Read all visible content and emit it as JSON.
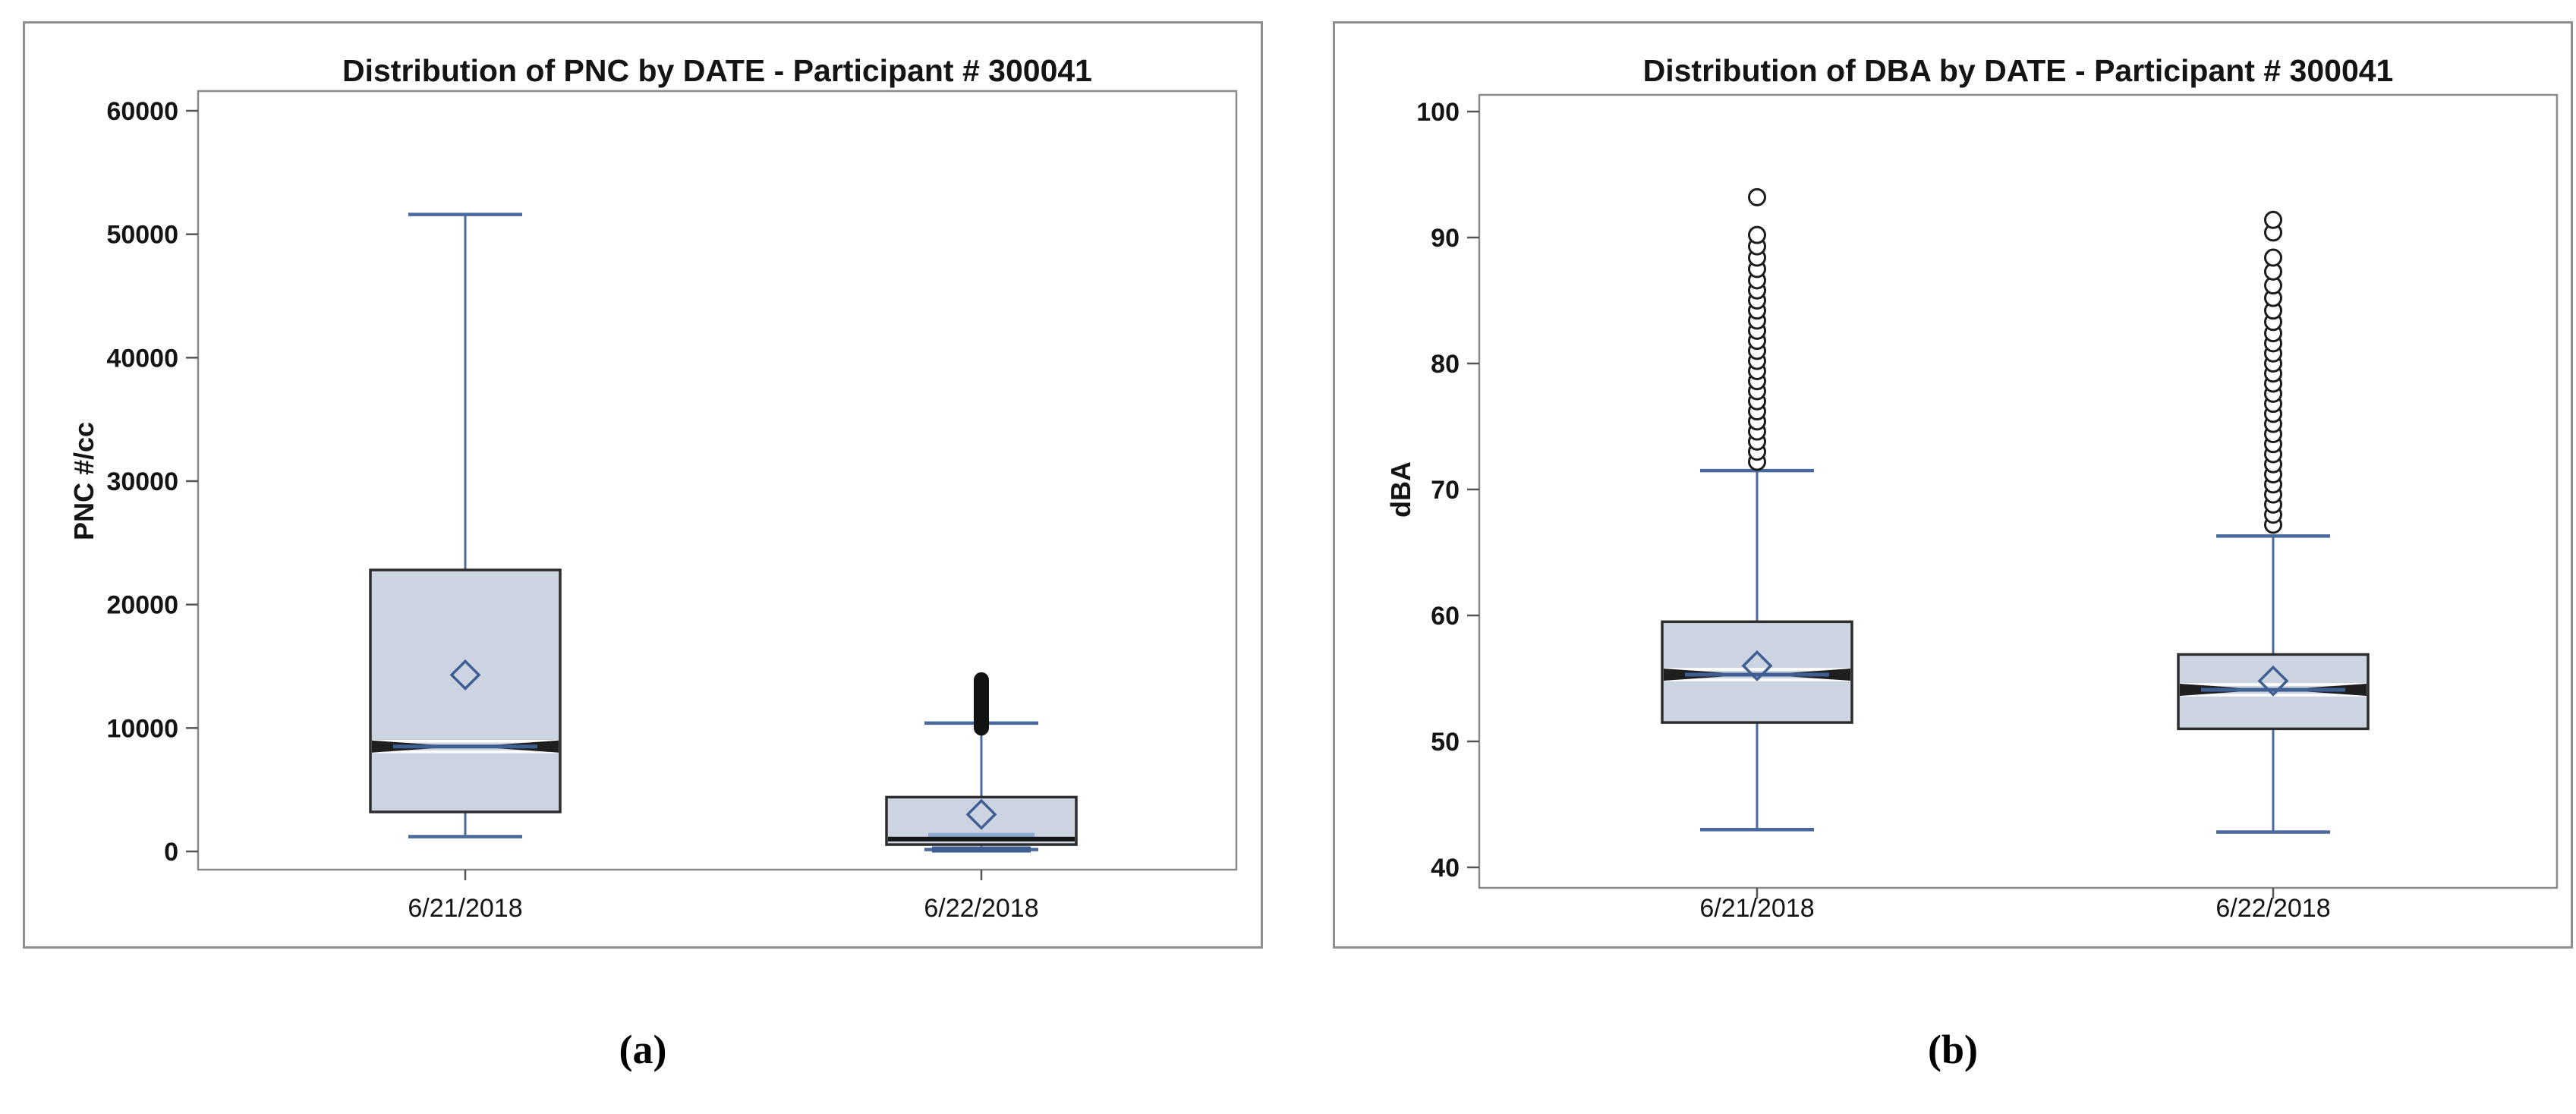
{
  "figure": {
    "captions": {
      "a": "(a)",
      "b": "(b)"
    },
    "colors": {
      "box_fill": "#ccd4e2",
      "box_border": "#2d2d2d",
      "whisker": "#4a6a9e",
      "median_blue": "#3f5e92",
      "notch_hint": "#8ba6cf",
      "mean_outline": "#3f5e92",
      "outlier_stroke": "#1c1c1c",
      "outlier_fill": "#ffffff",
      "capsule_fill": "#121212",
      "frame": "#8a8a8a",
      "panel_border": "#8f8f8f",
      "text": "#141414"
    }
  },
  "chart_data": [
    {
      "type": "boxplot",
      "title": "Distribution of PNC by DATE - Participant # 300041",
      "xlabel": "",
      "ylabel": "PNC #/cc",
      "ylim": [
        0,
        60000
      ],
      "yticks": [
        0,
        10000,
        20000,
        30000,
        40000,
        50000,
        60000
      ],
      "ytick_labels": [
        "0",
        "10000",
        "20000",
        "30000",
        "40000",
        "50000",
        "60000"
      ],
      "categories": [
        "6/21/2018",
        "6/22/2018"
      ],
      "grid": false,
      "legend": null,
      "boxes": [
        {
          "category": "6/21/2018",
          "whisker_low": 1200,
          "q1": 3200,
          "median": 8500,
          "q3": 22800,
          "whisker_high": 51600,
          "mean": 14300,
          "notch_style": "wedge",
          "outliers": [],
          "outlier_bar": null
        },
        {
          "category": "6/22/2018",
          "whisker_low": 150,
          "q1": 550,
          "median": 1000,
          "q3": 4400,
          "whisker_high": 10400,
          "mean": 3000,
          "notch_style": "low",
          "notch_hint_top": 1500,
          "outliers": [],
          "outlier_bar": {
            "from": 10000,
            "to": 13900
          }
        }
      ]
    },
    {
      "type": "boxplot",
      "title": "Distribution of DBA by DATE - Participant # 300041",
      "xlabel": "",
      "ylabel": "dBA",
      "ylim": [
        40,
        100
      ],
      "yticks": [
        40,
        50,
        60,
        70,
        80,
        90,
        100
      ],
      "ytick_labels": [
        "40",
        "50",
        "60",
        "70",
        "80",
        "90",
        "100"
      ],
      "categories": [
        "6/21/2018",
        "6/22/2018"
      ],
      "grid": false,
      "legend": null,
      "boxes": [
        {
          "category": "6/21/2018",
          "whisker_low": 43.0,
          "q1": 51.5,
          "median": 55.3,
          "q3": 59.5,
          "whisker_high": 71.5,
          "mean": 56.0,
          "notch_style": "wedge",
          "outliers": [
            72.2,
            73.0,
            73.8,
            74.6,
            75.4,
            76.2,
            77.0,
            77.8,
            78.6,
            79.4,
            80.2,
            81.0,
            81.8,
            82.6,
            83.4,
            84.2,
            85.0,
            85.8,
            86.6,
            87.5,
            88.4,
            89.3,
            90.2,
            93.2
          ],
          "outlier_bar": null
        },
        {
          "category": "6/22/2018",
          "whisker_low": 42.8,
          "q1": 51.0,
          "median": 54.1,
          "q3": 56.9,
          "whisker_high": 66.3,
          "mean": 54.8,
          "notch_style": "wedge",
          "outliers": [
            67.2,
            68.0,
            68.8,
            69.6,
            70.4,
            71.2,
            72.0,
            72.8,
            73.6,
            74.4,
            75.2,
            76.0,
            76.8,
            77.6,
            78.4,
            79.2,
            80.0,
            80.8,
            81.6,
            82.4,
            83.3,
            84.2,
            85.2,
            86.2,
            87.3,
            88.4,
            90.4,
            91.4
          ],
          "outlier_bar": null
        }
      ]
    }
  ]
}
